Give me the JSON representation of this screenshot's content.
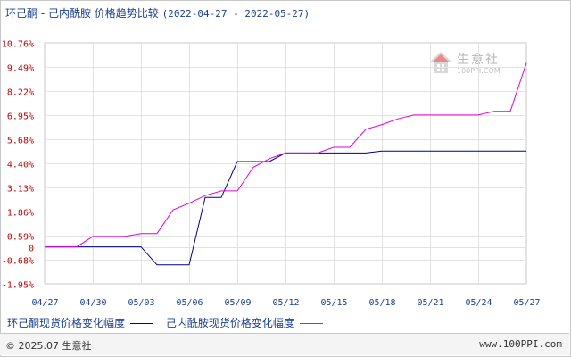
{
  "header": {
    "title": "环己酮 - 己内酰胺 价格趋势比较",
    "date_range": "(2022-04-27 - 2022-05-27)"
  },
  "legend": {
    "items": [
      {
        "label": "环己酮现货价格变化幅度",
        "color": "#00008b"
      },
      {
        "label": "己内酰胺现货价格变化幅度",
        "color": "#e000e0"
      }
    ]
  },
  "footer": {
    "copyright": "© 2025.07 生意社",
    "url": "www.100PPI.com"
  },
  "watermark": {
    "brand": "生意社",
    "url": "100PPI.COM"
  },
  "chart_data": {
    "type": "line",
    "x_ticks": [
      "04/27",
      "04/30",
      "05/03",
      "05/06",
      "05/09",
      "05/12",
      "05/15",
      "05/18",
      "05/21",
      "05/24",
      "05/27"
    ],
    "y_ticks": [
      "10.76%",
      "9.49%",
      "8.22%",
      "6.95%",
      "5.68%",
      "4.40%",
      "3.13%",
      "1.86%",
      "0.59%",
      "0",
      "-0.68%",
      "-1.95%"
    ],
    "y_tick_values": [
      10.76,
      9.49,
      8.22,
      6.95,
      5.68,
      4.4,
      3.13,
      1.86,
      0.59,
      0,
      -0.68,
      -1.95
    ],
    "ylim": [
      -1.95,
      10.76
    ],
    "xlim": [
      0,
      30
    ],
    "grid": true,
    "series": [
      {
        "name": "环己酮现货价格变化幅度",
        "color": "#00008b",
        "points": [
          [
            0,
            0
          ],
          [
            3,
            0
          ],
          [
            6,
            0
          ],
          [
            7,
            -0.95
          ],
          [
            9,
            -0.95
          ],
          [
            10,
            2.6
          ],
          [
            11,
            2.6
          ],
          [
            12,
            4.5
          ],
          [
            14,
            4.5
          ],
          [
            15,
            4.95
          ],
          [
            17,
            4.95
          ],
          [
            20,
            4.95
          ],
          [
            21,
            5.05
          ],
          [
            24,
            5.05
          ],
          [
            27,
            5.05
          ],
          [
            30,
            5.05
          ]
        ]
      },
      {
        "name": "己内酰胺现货价格变化幅度",
        "color": "#e000e0",
        "points": [
          [
            0,
            0
          ],
          [
            2,
            0
          ],
          [
            3,
            0.55
          ],
          [
            5,
            0.55
          ],
          [
            6,
            0.7
          ],
          [
            7,
            0.7
          ],
          [
            8,
            1.95
          ],
          [
            9,
            2.3
          ],
          [
            10,
            2.7
          ],
          [
            11,
            2.95
          ],
          [
            12,
            2.95
          ],
          [
            13,
            4.2
          ],
          [
            14,
            4.65
          ],
          [
            15,
            4.95
          ],
          [
            16,
            4.95
          ],
          [
            17,
            4.95
          ],
          [
            18,
            5.25
          ],
          [
            19,
            5.25
          ],
          [
            20,
            6.2
          ],
          [
            21,
            6.45
          ],
          [
            22,
            6.75
          ],
          [
            23,
            6.95
          ],
          [
            24,
            6.95
          ],
          [
            27,
            6.95
          ],
          [
            28,
            7.15
          ],
          [
            29,
            7.15
          ],
          [
            30,
            9.7
          ]
        ]
      }
    ]
  }
}
